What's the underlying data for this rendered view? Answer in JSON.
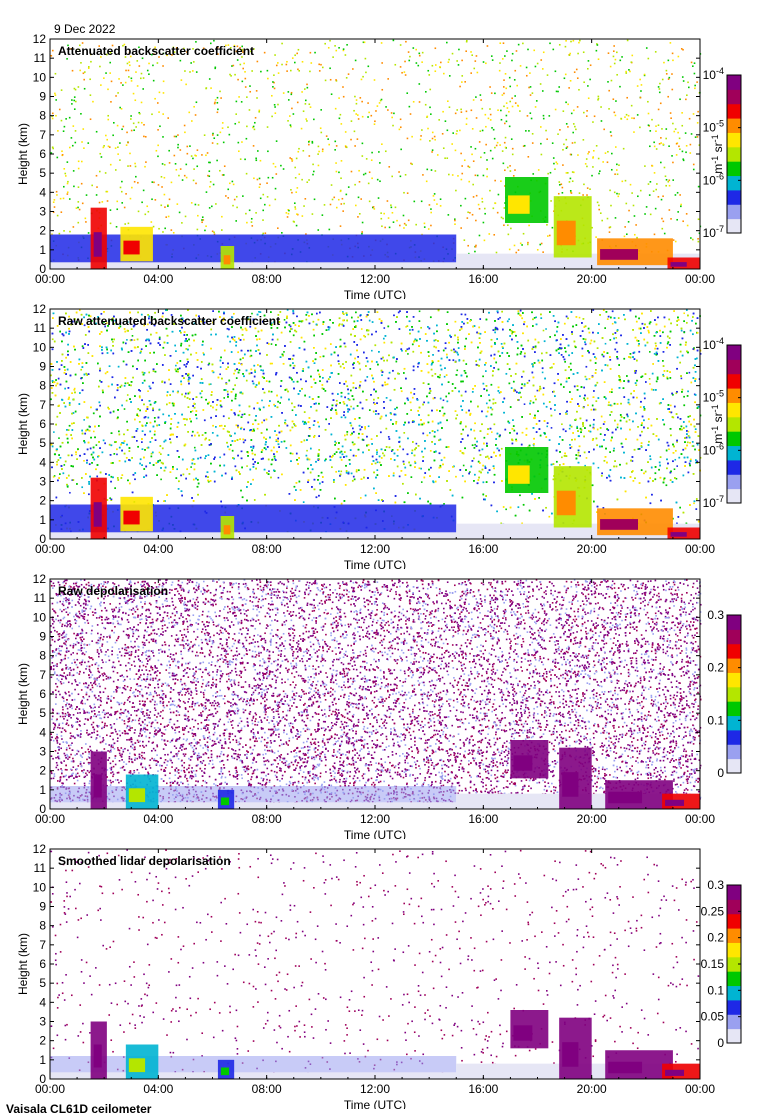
{
  "date_label": "9 Dec 2022",
  "footer_label": "Vaisala CL61D ceilometer",
  "colors": {
    "scale": [
      "#e6e6f5",
      "#9aa0f0",
      "#1e28e6",
      "#00b4d2",
      "#00c800",
      "#b4e600",
      "#ffe600",
      "#ff8c00",
      "#f00000",
      "#a0005a",
      "#800080"
    ],
    "background": "#ffffff"
  },
  "chart_data": [
    {
      "type": "heatmap",
      "title": "Attenuated backscatter coefficient",
      "xlabel": "Time (UTC)",
      "ylabel": "Height (km)",
      "xticks": [
        "00:00",
        "04:00",
        "08:00",
        "12:00",
        "16:00",
        "20:00",
        "00:00"
      ],
      "yticks": [
        "0",
        "1",
        "2",
        "3",
        "4",
        "5",
        "6",
        "7",
        "8",
        "9",
        "10",
        "11",
        "12"
      ],
      "ylim": [
        0,
        12
      ],
      "colorbar": {
        "scale": "log",
        "ticks": [
          "10-4",
          "10-5",
          "10-6",
          "10-7"
        ],
        "ticks_html": [
          "10<sup>-4</sup>",
          "10<sup>-5</sup>",
          "10<sup>-6</sup>",
          "10<sup>-7</sup>"
        ],
        "unit": "m-1 sr-1",
        "unit_html": "m<sup>-1</sup> sr<sup>-1</sup>"
      },
      "grid": false,
      "noise": "sparse"
    },
    {
      "type": "heatmap",
      "title": "Raw attenuated backscatter coefficient",
      "xlabel": "Time (UTC)",
      "ylabel": "Height (km)",
      "xticks": [
        "00:00",
        "04:00",
        "08:00",
        "12:00",
        "16:00",
        "20:00",
        "00:00"
      ],
      "yticks": [
        "0",
        "1",
        "2",
        "3",
        "4",
        "5",
        "6",
        "7",
        "8",
        "9",
        "10",
        "11",
        "12"
      ],
      "ylim": [
        0,
        12
      ],
      "colorbar": {
        "scale": "log",
        "ticks": [
          "10-4",
          "10-5",
          "10-6",
          "10-7"
        ],
        "ticks_html": [
          "10<sup>-4</sup>",
          "10<sup>-5</sup>",
          "10<sup>-6</sup>",
          "10<sup>-7</sup>"
        ],
        "unit": "m-1 sr-1",
        "unit_html": "m<sup>-1</sup> sr<sup>-1</sup>"
      },
      "grid": false,
      "noise": "dense-green"
    },
    {
      "type": "heatmap",
      "title": "Raw depolarisation",
      "xlabel": "Time (UTC)",
      "ylabel": "Height (km)",
      "xticks": [
        "00:00",
        "04:00",
        "08:00",
        "12:00",
        "16:00",
        "20:00",
        "00:00"
      ],
      "yticks": [
        "0",
        "1",
        "2",
        "3",
        "4",
        "5",
        "6",
        "7",
        "8",
        "9",
        "10",
        "11",
        "12"
      ],
      "ylim": [
        0,
        12
      ],
      "colorbar": {
        "scale": "linear",
        "ticks": [
          "0.3",
          "0.2",
          "0.1",
          "0"
        ],
        "range": [
          0,
          0.3
        ]
      },
      "grid": false,
      "noise": "dense-purple"
    },
    {
      "type": "heatmap",
      "title": "Smoothed lidar depolarisation",
      "xlabel": "Time (UTC)",
      "ylabel": "Height (km)",
      "xticks": [
        "00:00",
        "04:00",
        "08:00",
        "12:00",
        "16:00",
        "20:00",
        "00:00"
      ],
      "yticks": [
        "0",
        "1",
        "2",
        "3",
        "4",
        "5",
        "6",
        "7",
        "8",
        "9",
        "10",
        "11",
        "12"
      ],
      "ylim": [
        0,
        12
      ],
      "colorbar": {
        "scale": "linear",
        "ticks": [
          "0.3",
          "0.25",
          "0.2",
          "0.15",
          "0.1",
          "0.05",
          "0"
        ],
        "range": [
          0,
          0.3
        ]
      },
      "grid": false,
      "noise": "sparse-purple"
    }
  ]
}
